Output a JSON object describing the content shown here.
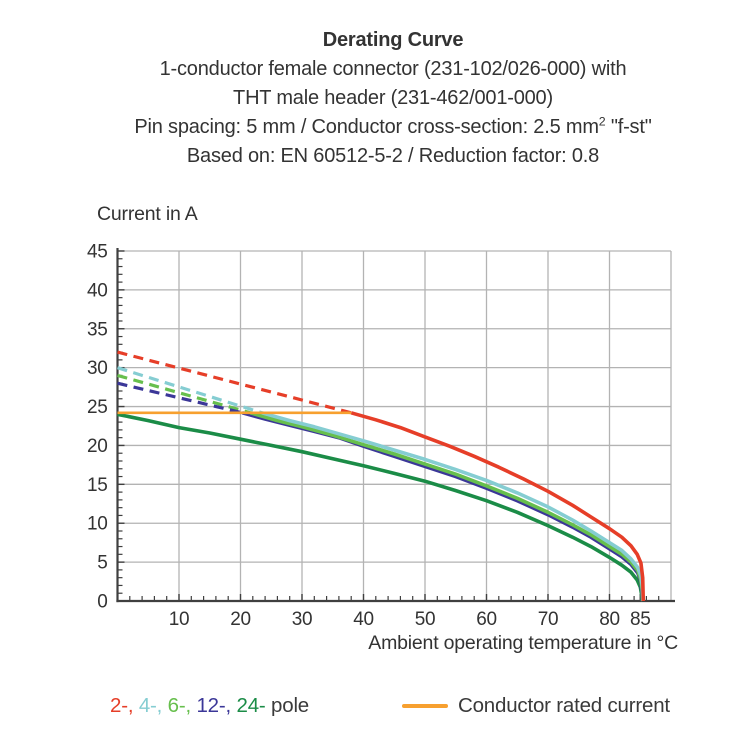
{
  "header": {
    "title": "Derating Curve",
    "line2": "1-conductor female connector (231-102/026-000) with",
    "line3": "THT male header (231-462/001-000)",
    "line4_pre": "Pin spacing: 5 mm / Conductor cross-section: 2.5 mm",
    "line4_sup": "2",
    "line4_post": " \"f-st\"",
    "line5": "Based on: EN 60512-5-2 / Reduction factor: 0.8"
  },
  "chart_data": {
    "type": "line",
    "title": "Derating Curve",
    "xlabel": "Ambient operating temperature in °C",
    "ylabel": "Current in A",
    "xlim": [
      0,
      90
    ],
    "ylim": [
      0,
      45
    ],
    "x_major_ticks": [
      10,
      20,
      30,
      40,
      50,
      60,
      70,
      80,
      85
    ],
    "y_major_ticks": [
      0,
      5,
      10,
      15,
      20,
      25,
      30,
      35,
      40,
      45
    ],
    "x_gridlines": [
      10,
      20,
      30,
      40,
      50,
      60,
      70,
      80,
      90
    ],
    "y_gridlines": [
      5,
      10,
      15,
      20,
      25,
      30,
      35,
      40,
      45
    ],
    "x_minor_step": 2,
    "y_minor_step": 1,
    "grid": true,
    "grid_color": "#b3b3b3",
    "axis_color": "#3f3f3f",
    "rated_line": {
      "label": "Conductor rated current",
      "color": "#f7a02f",
      "y": 24.2,
      "x_start": 0,
      "x_end": 38
    },
    "series": [
      {
        "name": "2-pole",
        "poles": 2,
        "color": "#e63e28",
        "dashed": [
          [
            0,
            32
          ],
          [
            38,
            24.2
          ]
        ],
        "solid": [
          [
            38,
            24.2
          ],
          [
            42,
            23.3
          ],
          [
            46,
            22.3
          ],
          [
            50,
            21.1
          ],
          [
            54,
            19.9
          ],
          [
            58,
            18.6
          ],
          [
            62,
            17.2
          ],
          [
            66,
            15.7
          ],
          [
            70,
            14.1
          ],
          [
            74,
            12.3
          ],
          [
            77,
            10.8
          ],
          [
            80,
            9.3
          ],
          [
            82,
            8.2
          ],
          [
            83.5,
            7.1
          ],
          [
            84.5,
            6.0
          ],
          [
            85.1,
            4.9
          ],
          [
            85.4,
            3.0
          ],
          [
            85.5,
            0
          ]
        ]
      },
      {
        "name": "4-pole",
        "poles": 4,
        "color": "#85cdd2",
        "dashed": [
          [
            0,
            30
          ],
          [
            23.5,
            24.2
          ]
        ],
        "solid": [
          [
            23.5,
            24.2
          ],
          [
            28,
            23.2
          ],
          [
            32,
            22.4
          ],
          [
            36,
            21.5
          ],
          [
            40,
            20.6
          ],
          [
            45,
            19.4
          ],
          [
            50,
            18.2
          ],
          [
            55,
            16.9
          ],
          [
            60,
            15.5
          ],
          [
            65,
            13.9
          ],
          [
            70,
            12.1
          ],
          [
            74,
            10.4
          ],
          [
            77,
            9.0
          ],
          [
            80,
            7.5
          ],
          [
            82,
            6.5
          ],
          [
            83.5,
            5.4
          ],
          [
            84.6,
            4.3
          ],
          [
            85.1,
            3.2
          ],
          [
            85.35,
            1.8
          ],
          [
            85.45,
            0
          ]
        ]
      },
      {
        "name": "6-pole",
        "poles": 6,
        "color": "#67bf4d",
        "dashed": [
          [
            0,
            29
          ],
          [
            21.6,
            24.2
          ]
        ],
        "solid": [
          [
            21.6,
            24.2
          ],
          [
            26,
            23.2
          ],
          [
            30,
            22.4
          ],
          [
            35,
            21.3
          ],
          [
            40,
            20.1
          ],
          [
            45,
            18.9
          ],
          [
            50,
            17.6
          ],
          [
            55,
            16.3
          ],
          [
            60,
            14.8
          ],
          [
            65,
            13.2
          ],
          [
            70,
            11.4
          ],
          [
            74,
            9.8
          ],
          [
            77,
            8.5
          ],
          [
            80,
            7.0
          ],
          [
            82,
            6.0
          ],
          [
            83.5,
            5.0
          ],
          [
            84.6,
            3.9
          ],
          [
            85.05,
            2.8
          ],
          [
            85.3,
            1.5
          ],
          [
            85.4,
            0
          ]
        ]
      },
      {
        "name": "12-pole",
        "poles": 12,
        "color": "#3b3798",
        "dashed": [
          [
            0,
            28
          ],
          [
            20.3,
            24.2
          ]
        ],
        "solid": [
          [
            20.3,
            24.2
          ],
          [
            24,
            23.4
          ],
          [
            28,
            22.6
          ],
          [
            32,
            21.8
          ],
          [
            36,
            21.0
          ],
          [
            40,
            19.9
          ],
          [
            45,
            18.6
          ],
          [
            50,
            17.3
          ],
          [
            55,
            16.0
          ],
          [
            60,
            14.5
          ],
          [
            65,
            12.9
          ],
          [
            70,
            11.1
          ],
          [
            74,
            9.5
          ],
          [
            77,
            8.2
          ],
          [
            80,
            6.7
          ],
          [
            82,
            5.7
          ],
          [
            83.5,
            4.7
          ],
          [
            84.6,
            3.6
          ],
          [
            85,
            2.7
          ],
          [
            85.25,
            1.3
          ],
          [
            85.35,
            0
          ]
        ]
      },
      {
        "name": "24-pole",
        "poles": 24,
        "color": "#1b8c47",
        "dashed": null,
        "solid": [
          [
            0,
            24
          ],
          [
            5,
            23.2
          ],
          [
            10,
            22.3
          ],
          [
            15,
            21.6
          ],
          [
            20,
            20.8
          ],
          [
            25,
            20.0
          ],
          [
            30,
            19.2
          ],
          [
            35,
            18.3
          ],
          [
            40,
            17.4
          ],
          [
            45,
            16.4
          ],
          [
            50,
            15.4
          ],
          [
            55,
            14.2
          ],
          [
            60,
            12.9
          ],
          [
            65,
            11.4
          ],
          [
            70,
            9.7
          ],
          [
            74,
            8.2
          ],
          [
            77,
            7.0
          ],
          [
            80,
            5.6
          ],
          [
            82,
            4.6
          ],
          [
            83.5,
            3.7
          ],
          [
            84.5,
            2.7
          ],
          [
            85,
            1.8
          ],
          [
            85.2,
            0.9
          ],
          [
            85.3,
            0
          ]
        ]
      }
    ],
    "legend_position": "bottom"
  },
  "legend": {
    "poles": [
      {
        "label": "2-",
        "color": "#e63e28"
      },
      {
        "label": "4-",
        "color": "#85cdd2"
      },
      {
        "label": "6-",
        "color": "#67bf4d"
      },
      {
        "label": "12-",
        "color": "#3b3798"
      },
      {
        "label": "24-",
        "color": "#1b8c47"
      }
    ],
    "separator": ", ",
    "pole_suffix": " pole",
    "rated_label": "Conductor rated current",
    "rated_color": "#f7a02f"
  }
}
